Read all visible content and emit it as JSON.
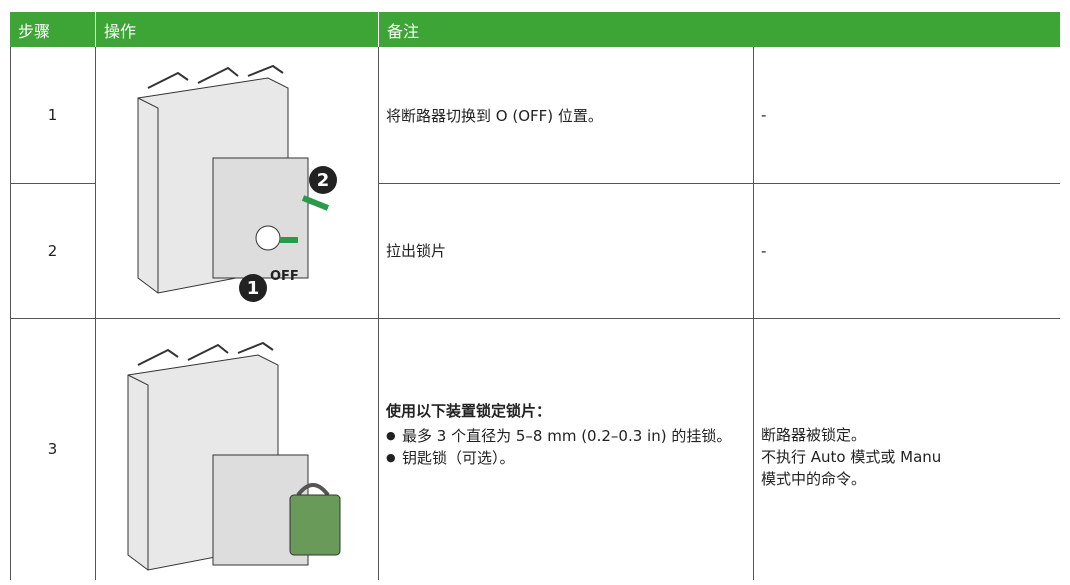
{
  "table": {
    "header": [
      "步骤",
      "操作",
      "备注"
    ],
    "rows": [
      {
        "step": "1",
        "note": "将断路器切换到 O (OFF) 位置。",
        "remark": "-"
      },
      {
        "step": "2",
        "note": "拉出锁片",
        "remark": "-"
      },
      {
        "step": "3",
        "note_title": "使用以下装置锁定锁片：",
        "note_items": [
          "最多 3 个直径为 5–8 mm (0.2–0.3 in) 的挂锁。",
          "钥匙锁（可选）。"
        ],
        "remark_lines": [
          "断路器被锁定。",
          "不执行 Auto 模式或 Manu",
          "模式中的命令。"
        ]
      }
    ]
  },
  "figure_labels": {
    "top": [
      "2",
      "1",
      "OFF"
    ]
  }
}
